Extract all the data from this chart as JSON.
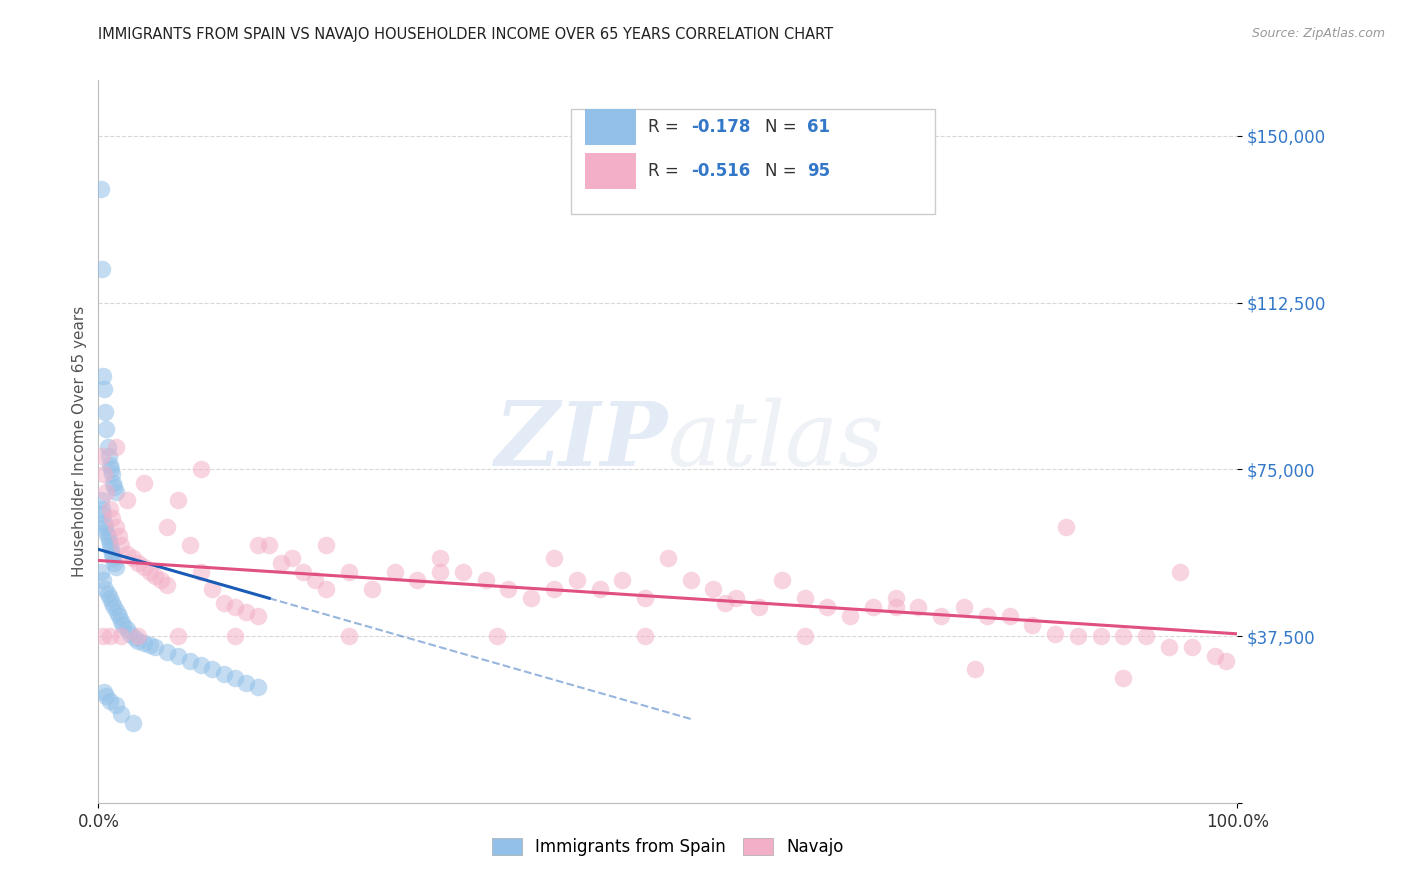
{
  "title": "IMMIGRANTS FROM SPAIN VS NAVAJO HOUSEHOLDER INCOME OVER 65 YEARS CORRELATION CHART",
  "source": "Source: ZipAtlas.com",
  "ylabel": "Householder Income Over 65 years",
  "x_min": 0.0,
  "x_max": 100.0,
  "y_min": 0,
  "y_max": 162500,
  "y_ticks": [
    0,
    37500,
    75000,
    112500,
    150000
  ],
  "y_tick_labels": [
    "",
    "$37,500",
    "$75,000",
    "$112,500",
    "$150,000"
  ],
  "x_ticks": [
    0,
    100
  ],
  "x_tick_labels": [
    "0.0%",
    "100.0%"
  ],
  "legend_blue_r": "-0.178",
  "legend_blue_n": "61",
  "legend_pink_r": "-0.516",
  "legend_pink_n": "95",
  "legend_blue_label": "Immigrants from Spain",
  "legend_pink_label": "Navajo",
  "blue_color": "#92c0e8",
  "pink_color": "#f4afc8",
  "blue_line_color": "#1a5cb5",
  "pink_line_color": "#e05080",
  "background_color": "#ffffff",
  "grid_color": "#d8d8d8",
  "watermark_zip": "ZIP",
  "watermark_atlas": "atlas",
  "blue_scatter_x": [
    0.2,
    0.3,
    0.4,
    0.5,
    0.6,
    0.7,
    0.8,
    0.9,
    1.0,
    1.1,
    1.2,
    1.3,
    1.4,
    1.5,
    0.2,
    0.3,
    0.4,
    0.5,
    0.6,
    0.7,
    0.8,
    0.9,
    1.0,
    1.1,
    1.2,
    1.3,
    1.4,
    1.5,
    0.2,
    0.4,
    0.6,
    0.8,
    1.0,
    1.2,
    1.4,
    1.6,
    1.8,
    2.0,
    2.2,
    2.5,
    2.8,
    3.2,
    3.5,
    4.0,
    4.5,
    5.0,
    6.0,
    7.0,
    8.0,
    9.0,
    10.0,
    11.0,
    12.0,
    13.0,
    14.0,
    0.5,
    0.7,
    1.0,
    1.5,
    2.0,
    3.0
  ],
  "blue_scatter_y": [
    138000,
    120000,
    96000,
    93000,
    88000,
    84000,
    80000,
    78000,
    76000,
    75000,
    74000,
    72000,
    71000,
    70000,
    68000,
    66000,
    65000,
    63000,
    62000,
    61000,
    60000,
    59000,
    58000,
    57000,
    56000,
    55000,
    54000,
    53000,
    52000,
    50000,
    48000,
    47000,
    46000,
    45000,
    44000,
    43000,
    42000,
    41000,
    40000,
    39000,
    38000,
    37000,
    36500,
    36000,
    35500,
    35000,
    34000,
    33000,
    32000,
    31000,
    30000,
    29000,
    28000,
    27000,
    26000,
    25000,
    24000,
    23000,
    22000,
    20000,
    18000
  ],
  "pink_scatter_x": [
    0.3,
    0.5,
    0.7,
    1.0,
    1.2,
    1.5,
    1.8,
    2.0,
    2.5,
    3.0,
    3.5,
    4.0,
    4.5,
    5.0,
    5.5,
    6.0,
    7.0,
    8.0,
    9.0,
    10.0,
    11.0,
    12.0,
    13.0,
    14.0,
    15.0,
    16.0,
    17.0,
    18.0,
    19.0,
    20.0,
    22.0,
    24.0,
    26.0,
    28.0,
    30.0,
    32.0,
    34.0,
    36.0,
    38.0,
    40.0,
    42.0,
    44.0,
    46.0,
    48.0,
    50.0,
    52.0,
    54.0,
    56.0,
    58.0,
    60.0,
    62.0,
    64.0,
    66.0,
    68.0,
    70.0,
    72.0,
    74.0,
    76.0,
    78.0,
    80.0,
    82.0,
    84.0,
    86.0,
    88.0,
    90.0,
    92.0,
    94.0,
    96.0,
    98.0,
    99.0,
    1.5,
    2.5,
    4.0,
    6.0,
    9.0,
    14.0,
    20.0,
    30.0,
    40.0,
    55.0,
    70.0,
    85.0,
    95.0,
    0.4,
    1.0,
    2.0,
    3.5,
    7.0,
    12.0,
    22.0,
    35.0,
    48.0,
    62.0,
    77.0,
    90.0
  ],
  "pink_scatter_y": [
    78000,
    74000,
    70000,
    66000,
    64000,
    62000,
    60000,
    58000,
    56000,
    55000,
    54000,
    53000,
    52000,
    51000,
    50000,
    49000,
    68000,
    58000,
    52000,
    48000,
    45000,
    44000,
    43000,
    42000,
    58000,
    54000,
    55000,
    52000,
    50000,
    58000,
    52000,
    48000,
    52000,
    50000,
    55000,
    52000,
    50000,
    48000,
    46000,
    55000,
    50000,
    48000,
    50000,
    46000,
    55000,
    50000,
    48000,
    46000,
    44000,
    50000,
    46000,
    44000,
    42000,
    44000,
    46000,
    44000,
    42000,
    44000,
    42000,
    42000,
    40000,
    38000,
    37500,
    37500,
    37500,
    37500,
    35000,
    35000,
    33000,
    32000,
    80000,
    68000,
    72000,
    62000,
    75000,
    58000,
    48000,
    52000,
    48000,
    45000,
    44000,
    62000,
    52000,
    37500,
    37500,
    37500,
    37500,
    37500,
    37500,
    37500,
    37500,
    37500,
    37500,
    30000,
    28000
  ]
}
